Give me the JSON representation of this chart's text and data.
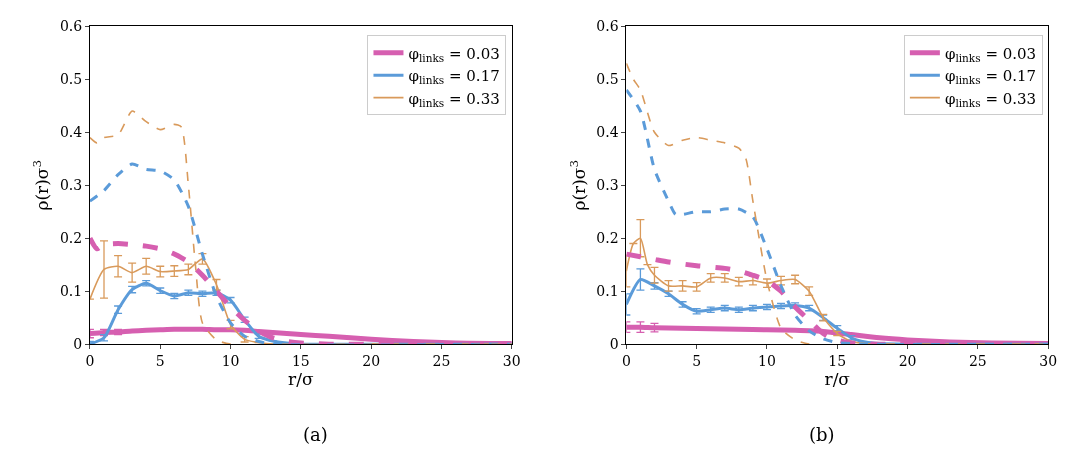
{
  "chart_data": [
    {
      "type": "line",
      "xlabel": "r/σ",
      "ylabel": "ρ(r)σ$^{3}$",
      "xlim": [
        0,
        30
      ],
      "ylim": [
        0,
        0.6
      ],
      "xticks": [
        0,
        5,
        10,
        15,
        20,
        25,
        30
      ],
      "yticks": [
        0.0,
        0.1,
        0.2,
        0.3,
        0.4,
        0.5,
        0.6
      ],
      "legend": "top right",
      "annotations": [
        "(a)"
      ],
      "series": [
        {
          "name": "φ$_{links}$ = 0.03",
          "color": "#d65fb0",
          "line_style": "solid",
          "x": [
            0,
            1,
            2,
            3,
            4,
            5,
            6,
            7,
            8,
            9,
            10,
            11,
            12,
            13,
            14,
            15,
            17,
            20,
            23,
            26,
            30
          ],
          "values": [
            0.02,
            0.022,
            0.023,
            0.025,
            0.026,
            0.027,
            0.028,
            0.028,
            0.028,
            0.027,
            0.027,
            0.026,
            0.024,
            0.022,
            0.02,
            0.018,
            0.015,
            0.009,
            0.005,
            0.002,
            0.001
          ],
          "errors": [
            0.008,
            0.006,
            0.005,
            null,
            null,
            null,
            null,
            null,
            null,
            null,
            null,
            null,
            null,
            null,
            null,
            null,
            null,
            null,
            null,
            null,
            null
          ]
        },
        {
          "name": "φ$_{links}$ = 0.17",
          "color": "#5b9bd9",
          "line_style": "solid",
          "x": [
            0,
            1,
            2,
            3,
            4,
            5,
            6,
            7,
            8,
            9,
            10,
            11,
            12,
            13,
            14,
            15,
            20,
            30
          ],
          "values": [
            0.0,
            0.012,
            0.065,
            0.103,
            0.115,
            0.101,
            0.091,
            0.097,
            0.095,
            0.097,
            0.083,
            0.046,
            0.015,
            0.006,
            0.002,
            0.0,
            0.0,
            0.0
          ],
          "errors": [
            0.005,
            0.006,
            0.007,
            0.006,
            0.005,
            0.005,
            0.005,
            0.005,
            0.005,
            0.005,
            0.005,
            0.005,
            0.004,
            null,
            null,
            null,
            null,
            null
          ]
        },
        {
          "name": "φ$_{links}$ = 0.33",
          "color": "#d99a5b",
          "line_style": "solid",
          "x": [
            0,
            1,
            2,
            3,
            4,
            5,
            6,
            7,
            8,
            9,
            10,
            11,
            12,
            13,
            20,
            30
          ],
          "values": [
            0.085,
            0.141,
            0.147,
            0.135,
            0.147,
            0.137,
            0.138,
            0.141,
            0.161,
            0.112,
            0.037,
            0.009,
            0.003,
            0.0,
            0.0,
            0.0
          ],
          "errors": [
            null,
            0.054,
            0.02,
            0.018,
            0.015,
            0.01,
            0.01,
            0.01,
            0.01,
            0.01,
            0.008,
            0.005,
            null,
            null,
            null,
            null
          ]
        },
        {
          "color": "#d65fb0",
          "line_style": "dashed",
          "marker": "none",
          "x": [
            0,
            0.5,
            1,
            2,
            3,
            4,
            5,
            6,
            7,
            8,
            9,
            10,
            11,
            12,
            13,
            14,
            15,
            17,
            30
          ],
          "values": [
            0.2,
            0.18,
            0.188,
            0.19,
            0.188,
            0.185,
            0.18,
            0.17,
            0.155,
            0.13,
            0.1,
            0.07,
            0.045,
            0.025,
            0.012,
            0.005,
            0.002,
            0.0,
            0.0
          ]
        },
        {
          "color": "#5b9bd9",
          "line_style": "dashed",
          "marker": "none",
          "x": [
            0,
            1,
            2,
            3,
            4,
            5,
            6,
            7,
            8,
            9,
            10,
            11,
            12,
            13,
            30
          ],
          "values": [
            0.27,
            0.29,
            0.32,
            0.34,
            0.33,
            0.327,
            0.31,
            0.26,
            0.17,
            0.09,
            0.04,
            0.015,
            0.005,
            0.0,
            0.0
          ]
        },
        {
          "color": "#d99a5b",
          "line_style": "dashed",
          "marker": "none",
          "x": [
            0,
            0.5,
            1,
            2,
            3,
            4,
            5,
            6,
            6.5,
            7,
            7.5,
            8,
            9,
            10,
            30
          ],
          "values": [
            0.39,
            0.38,
            0.39,
            0.395,
            0.44,
            0.42,
            0.405,
            0.415,
            0.41,
            0.3,
            0.15,
            0.04,
            0.008,
            0.0,
            0.0
          ]
        }
      ]
    },
    {
      "type": "line",
      "xlabel": "r/σ",
      "ylabel": "ρ(r)σ$^{3}$",
      "xlim": [
        0,
        30
      ],
      "ylim": [
        0,
        0.6
      ],
      "xticks": [
        0,
        5,
        10,
        15,
        20,
        25,
        30
      ],
      "yticks": [
        0.0,
        0.1,
        0.2,
        0.3,
        0.4,
        0.5,
        0.6
      ],
      "legend": "top right",
      "annotations": [
        "(b)"
      ],
      "series": [
        {
          "name": "φ$_{links}$ = 0.03",
          "color": "#d65fb0",
          "line_style": "solid",
          "x": [
            0,
            1,
            2,
            4,
            6,
            8,
            10,
            12,
            14,
            16,
            18,
            20,
            23,
            26,
            30
          ],
          "values": [
            0.032,
            0.032,
            0.031,
            0.03,
            0.029,
            0.028,
            0.027,
            0.026,
            0.024,
            0.018,
            0.012,
            0.008,
            0.004,
            0.002,
            0.001
          ],
          "errors": [
            0.01,
            0.01,
            0.008,
            null,
            null,
            null,
            null,
            null,
            null,
            null,
            null,
            null,
            null,
            null,
            null
          ]
        },
        {
          "name": "φ$_{links}$ = 0.17",
          "color": "#5b9bd9",
          "line_style": "solid",
          "x": [
            0,
            1,
            2,
            3,
            4,
            5,
            6,
            7,
            8,
            9,
            10,
            11,
            12,
            13,
            14,
            15,
            16,
            17,
            18,
            20,
            30
          ],
          "values": [
            0.075,
            0.122,
            0.11,
            0.095,
            0.075,
            0.062,
            0.065,
            0.068,
            0.065,
            0.068,
            0.07,
            0.072,
            0.073,
            0.068,
            0.05,
            0.03,
            0.012,
            0.004,
            0.001,
            0.0,
            0.0
          ],
          "errors": [
            0.02,
            0.02,
            0.006,
            0.005,
            0.005,
            0.005,
            0.005,
            0.005,
            0.005,
            0.005,
            0.005,
            0.005,
            0.005,
            0.005,
            0.005,
            0.005,
            0.004,
            null,
            null,
            null,
            null
          ]
        },
        {
          "name": "φ$_{links}$ = 0.33",
          "color": "#d99a5b",
          "line_style": "solid",
          "x": [
            0,
            0.5,
            1,
            1.5,
            2,
            3,
            4,
            5,
            6,
            7,
            8,
            9,
            10,
            11,
            12,
            13,
            14,
            15,
            16,
            17,
            18,
            30
          ],
          "values": [
            0.138,
            0.19,
            0.2,
            0.15,
            0.13,
            0.11,
            0.11,
            0.108,
            0.125,
            0.125,
            0.118,
            0.12,
            0.115,
            0.12,
            0.122,
            0.1,
            0.05,
            0.02,
            0.005,
            0.001,
            0.0,
            0.0
          ],
          "errors": [
            0.03,
            null,
            0.035,
            null,
            0.015,
            0.01,
            0.01,
            0.008,
            0.008,
            0.008,
            0.008,
            0.008,
            0.008,
            0.008,
            0.008,
            0.008,
            0.006,
            0.004,
            null,
            null,
            null,
            null
          ]
        },
        {
          "color": "#d65fb0",
          "line_style": "dashed",
          "marker": "none",
          "x": [
            0,
            1,
            2,
            3,
            5,
            7,
            8,
            9,
            10,
            11,
            12,
            13,
            14,
            15,
            16,
            18,
            30
          ],
          "values": [
            0.17,
            0.165,
            0.16,
            0.155,
            0.148,
            0.143,
            0.138,
            0.13,
            0.12,
            0.1,
            0.07,
            0.045,
            0.02,
            0.008,
            0.002,
            0.0,
            0.0
          ]
        },
        {
          "color": "#5b9bd9",
          "line_style": "dashed",
          "marker": "none",
          "x": [
            0,
            1,
            2,
            3,
            3.5,
            4,
            5,
            6,
            7,
            8,
            9,
            10,
            11,
            12,
            13,
            14,
            15,
            17,
            30
          ],
          "values": [
            0.48,
            0.44,
            0.33,
            0.27,
            0.245,
            0.245,
            0.25,
            0.25,
            0.255,
            0.255,
            0.24,
            0.18,
            0.11,
            0.055,
            0.025,
            0.01,
            0.003,
            0.0,
            0.0
          ]
        },
        {
          "color": "#d99a5b",
          "line_style": "dashed",
          "marker": "none",
          "x": [
            0,
            0.5,
            1,
            2,
            3,
            4,
            5,
            6,
            7,
            8,
            8.5,
            9,
            10,
            11,
            12,
            13,
            30
          ],
          "values": [
            0.53,
            0.5,
            0.48,
            0.4,
            0.375,
            0.385,
            0.39,
            0.385,
            0.38,
            0.37,
            0.35,
            0.27,
            0.12,
            0.03,
            0.008,
            0.0,
            0.0
          ]
        }
      ]
    }
  ]
}
